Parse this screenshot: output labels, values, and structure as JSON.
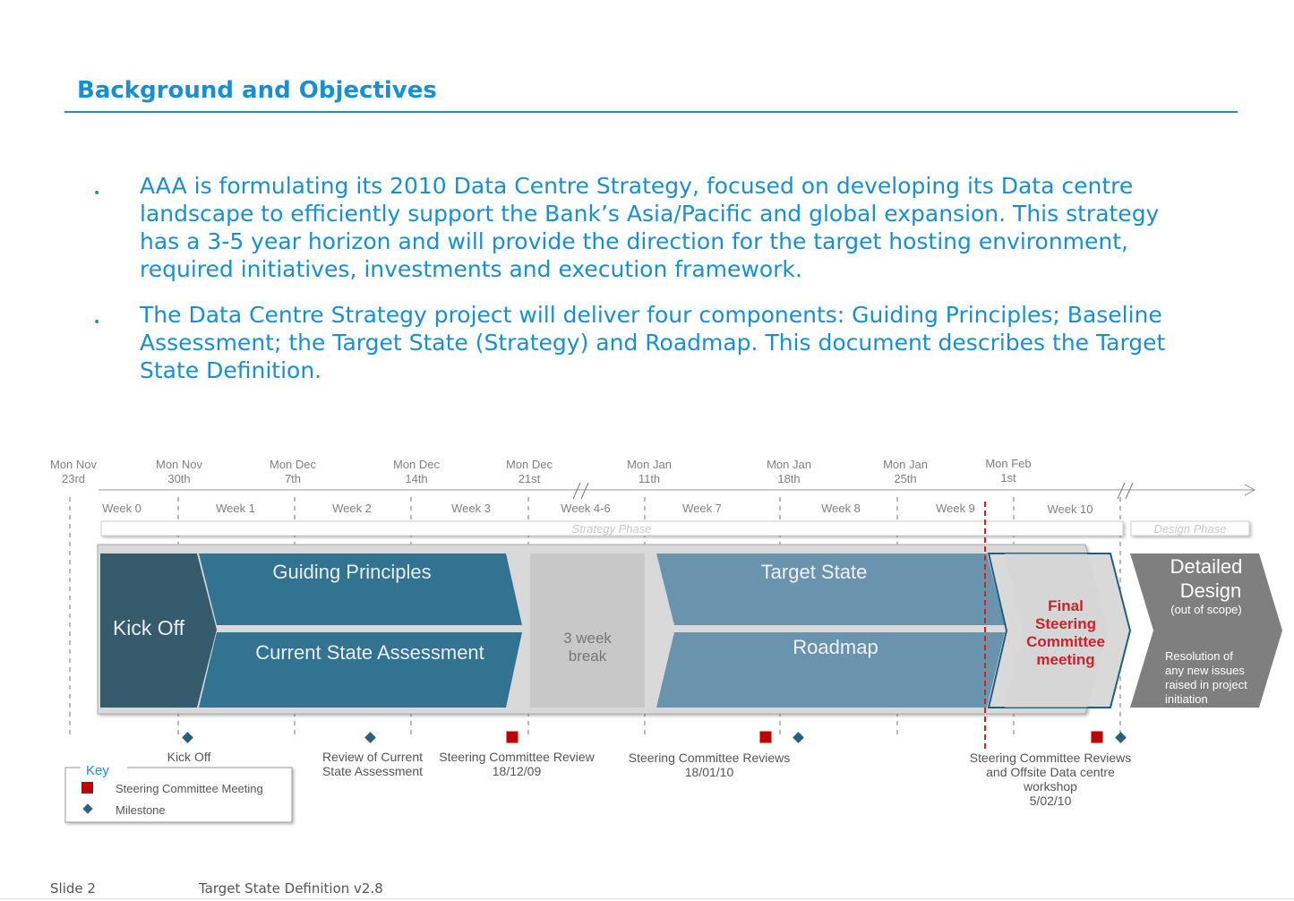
{
  "title": "Background and Objectives",
  "bullets": [
    "AAA is formulating its 2010 Data Centre Strategy, focused on developing its Data centre landscape to efficiently support the Bank’s Asia/Pacific and global expansion.  This strategy has a 3-5 year horizon and will provide the direction for the target hosting environment, required initiatives, investments and execution framework.",
    "The Data Centre Strategy project will deliver four components:  Guiding Principles; Baseline Assessment; the Target State (Strategy) and Roadmap.  This document describes the Target State Definition."
  ],
  "bullet_marker": "•",
  "timeline": {
    "dates": [
      {
        "l1": "Mon Nov",
        "l2": "23rd"
      },
      {
        "l1": "Mon Nov",
        "l2": "30th"
      },
      {
        "l1": "Mon Dec",
        "l2": "7th"
      },
      {
        "l1": "Mon Dec",
        "l2": "14th"
      },
      {
        "l1": "Mon Dec",
        "l2": "21st"
      },
      {
        "l1": "Mon Jan",
        "l2": "11th"
      },
      {
        "l1": "Mon Jan",
        "l2": "18th"
      },
      {
        "l1": "Mon Jan",
        "l2": "25th"
      },
      {
        "l1": "Mon Feb",
        "l2": "1st"
      }
    ],
    "weeks": [
      "Week 0",
      "Week 1",
      "Week 2",
      "Week 3",
      "Week 4-6",
      "Week 7",
      "Week 8",
      "Week 9",
      "Week 10"
    ],
    "phases": {
      "strategy": "Strategy Phase",
      "design": "Design Phase"
    },
    "blocks": {
      "kickoff": "Kick Off",
      "guiding": "Guiding Principles",
      "current": "Current State Assessment",
      "break_l1": "3 week",
      "break_l2": "break",
      "target": "Target State",
      "roadmap": "Roadmap",
      "final_l1": "Final",
      "final_l2": "Steering",
      "final_l3": "Committee",
      "final_l4": "meeting",
      "detailed_l1": "Detailed",
      "detailed_l2": "Design",
      "detailed_l3": "(out of scope)",
      "resolution": [
        "Resolution of",
        "any new issues",
        "raised in project",
        "initiation"
      ]
    },
    "events": [
      {
        "lines": [
          "Kick Off"
        ]
      },
      {
        "lines": [
          "Review of Current",
          "State Assessment"
        ]
      },
      {
        "lines": [
          "Steering Committee Review",
          "18/12/09"
        ]
      },
      {
        "lines": [
          "Steering Committee Reviews",
          "18/01/10"
        ]
      },
      {
        "lines": [
          "Steering Committee Reviews",
          "and Offsite Data centre",
          "workshop",
          "5/02/10"
        ]
      }
    ],
    "key": {
      "title": "Key",
      "meeting": "Steering Committee Meeting",
      "milestone": "Milestone"
    },
    "colors": {
      "kickoff": "#365b6d",
      "guiding": "#327391",
      "target": "#6a93ae",
      "detailed": "#7f7f7f",
      "final": "#d0202a",
      "milestone": "#2c5f7c",
      "meeting": "#c00000"
    }
  },
  "footer": {
    "slide": "Slide 2",
    "doc": "Target State Definition v2.8"
  }
}
